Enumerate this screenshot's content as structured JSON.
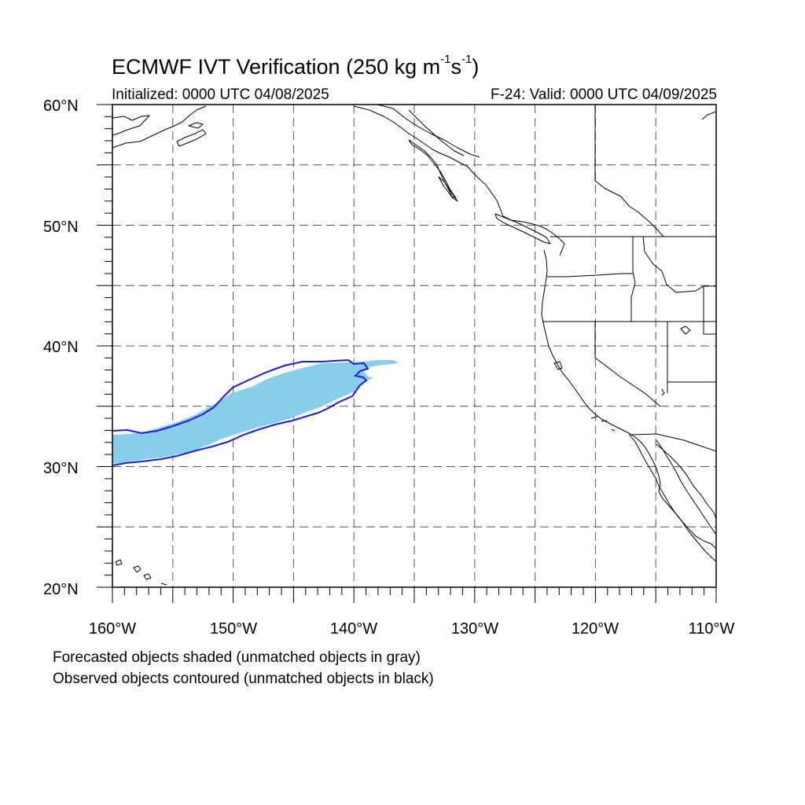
{
  "title": {
    "main": "ECMWF IVT Verification (250 kg m",
    "exp1": "-1",
    "mid": "s",
    "exp2": "-1",
    "close": ")"
  },
  "subtitle": {
    "left": "Initialized: 0000 UTC 04/08/2025",
    "right": "F-24: Valid: 0000 UTC 04/09/2025"
  },
  "axes": {
    "lat_labels": [
      "60°N",
      "50°N",
      "40°N",
      "30°N",
      "20°N"
    ],
    "lon_labels": [
      "160°W",
      "150°W",
      "140°W",
      "130°W",
      "120°W",
      "110°W"
    ],
    "lat_range": [
      20,
      60
    ],
    "lon_range": [
      -160,
      -110
    ],
    "grid": "dashed, every 5°"
  },
  "legend": {
    "line1": "Forecasted objects shaded (unmatched objects in gray)",
    "line2": "Observed objects contoured (unmatched objects in black)"
  },
  "colors": {
    "forecast_fill": "#87ceeb",
    "observed_contour": "#1a1ae6",
    "coastline": "#000000",
    "grid": "#555555"
  }
}
